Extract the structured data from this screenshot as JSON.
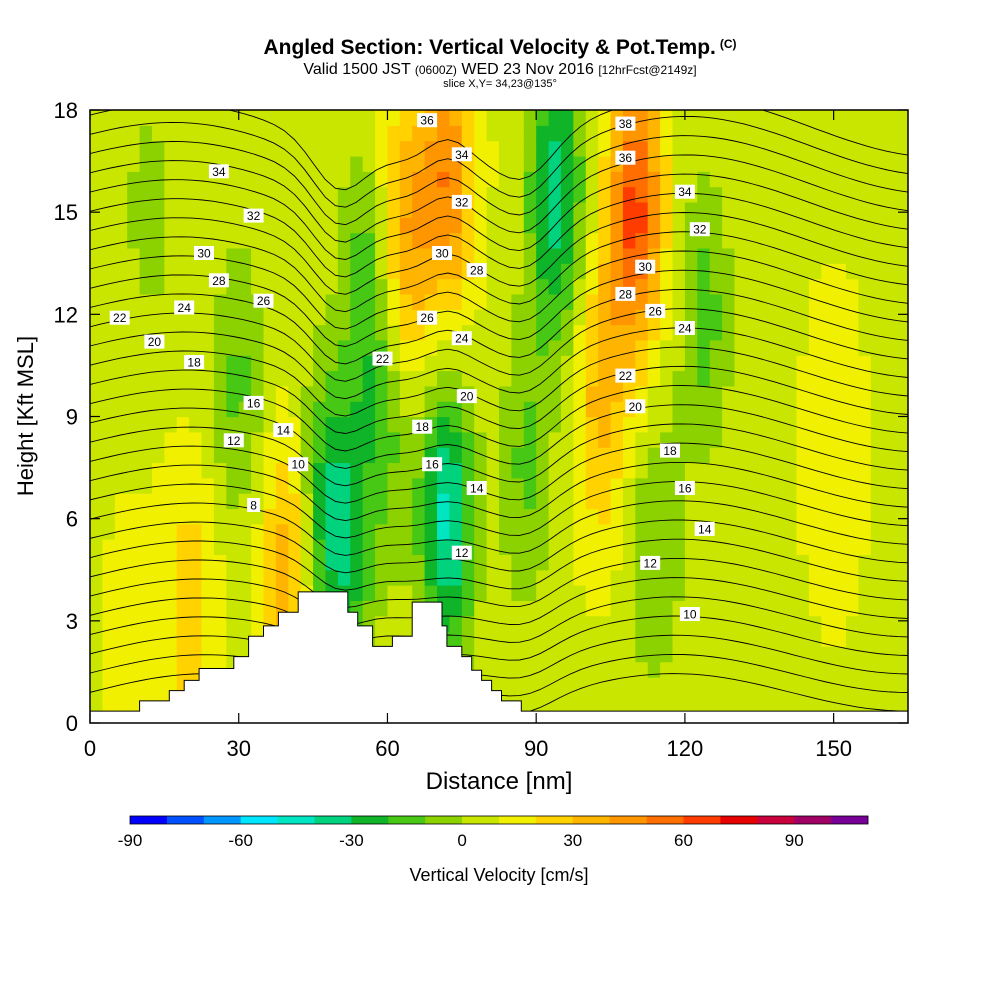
{
  "title": {
    "main": "Angled Section: Vertical Velocity & Pot.Temp.",
    "main_tag": "(C)",
    "valid_prefix": "Valid 1500 JST",
    "valid_utc": "(0600Z)",
    "valid_date": "WED 23 Nov 2016",
    "valid_forecast": "[12hrFcst@2149z]",
    "slice": "slice X,Y= 34,23@135°"
  },
  "chart_data": {
    "type": "heatmap",
    "xlabel": "Distance [nm]",
    "ylabel": "Height [Kft MSL]",
    "xlim": [
      0,
      165
    ],
    "ylim": [
      0,
      18
    ],
    "x_ticks": [
      0,
      30,
      60,
      90,
      120,
      150
    ],
    "y_ticks": [
      0,
      3,
      6,
      9,
      12,
      15,
      18
    ],
    "grid": false,
    "colorbar": {
      "label": "Vertical Velocity [cm/s]",
      "tick_values": [
        -90,
        -60,
        -30,
        0,
        30,
        60,
        90
      ],
      "bounds": [
        -90,
        -80,
        -70,
        -60,
        -50,
        -40,
        -30,
        -20,
        -10,
        0,
        10,
        20,
        30,
        40,
        50,
        60,
        70,
        80,
        90,
        100,
        110
      ],
      "colors": [
        "#0000ff",
        "#0050ff",
        "#0096ff",
        "#00e6ff",
        "#00e6c3",
        "#00d27d",
        "#0fb428",
        "#46c814",
        "#8cd200",
        "#c8e600",
        "#f0f000",
        "#ffd200",
        "#ffb400",
        "#ff9600",
        "#ff6e00",
        "#ff3c00",
        "#e60000",
        "#c8003c",
        "#a00064",
        "#780096"
      ]
    },
    "velocity_field": {
      "units": "cm/s",
      "background_cm_s": 8,
      "features": [
        {
          "x_nm": 8,
          "z_kft": 2.5,
          "w_cm_s": 6
        },
        {
          "x_nm": 12,
          "z_kft": 15,
          "w_cm_s": -12
        },
        {
          "x_nm": 20,
          "z_kft": 3.5,
          "w_cm_s": 18
        },
        {
          "x_nm": 30,
          "z_kft": 10,
          "w_cm_s": -20
        },
        {
          "x_nm": 40,
          "z_kft": 4.5,
          "w_cm_s": 30
        },
        {
          "x_nm": 47,
          "z_kft": 6.5,
          "w_cm_s": -28
        },
        {
          "x_nm": 52,
          "z_kft": 5,
          "w_cm_s": -30
        },
        {
          "x_nm": 56,
          "z_kft": 13,
          "w_cm_s": -25
        },
        {
          "x_nm": 60,
          "z_kft": 9,
          "w_cm_s": -20
        },
        {
          "x_nm": 63,
          "z_kft": 14,
          "w_cm_s": 35
        },
        {
          "x_nm": 72,
          "z_kft": 6,
          "w_cm_s": -50
        },
        {
          "x_nm": 72,
          "z_kft": 16,
          "w_cm_s": 40
        },
        {
          "x_nm": 88,
          "z_kft": 7.5,
          "w_cm_s": -20
        },
        {
          "x_nm": 94,
          "z_kft": 15.5,
          "w_cm_s": -45
        },
        {
          "x_nm": 103,
          "z_kft": 9.5,
          "w_cm_s": 25
        },
        {
          "x_nm": 110,
          "z_kft": 15,
          "w_cm_s": 55
        },
        {
          "x_nm": 114,
          "z_kft": 5,
          "w_cm_s": -18
        },
        {
          "x_nm": 124,
          "z_kft": 12,
          "w_cm_s": -22
        },
        {
          "x_nm": 150,
          "z_kft": 8,
          "w_cm_s": 12
        }
      ]
    },
    "potential_temperature": {
      "units": "C",
      "isotherm_interval": 1,
      "labels": [
        {
          "value": "34",
          "x_nm": 26,
          "z_kft": 16.2
        },
        {
          "value": "32",
          "x_nm": 33,
          "z_kft": 14.9
        },
        {
          "value": "30",
          "x_nm": 23,
          "z_kft": 13.8
        },
        {
          "value": "28",
          "x_nm": 26,
          "z_kft": 13.0
        },
        {
          "value": "26",
          "x_nm": 35,
          "z_kft": 12.4
        },
        {
          "value": "24",
          "x_nm": 19,
          "z_kft": 12.2
        },
        {
          "value": "22",
          "x_nm": 6,
          "z_kft": 11.9
        },
        {
          "value": "20",
          "x_nm": 13,
          "z_kft": 11.2
        },
        {
          "value": "18",
          "x_nm": 21,
          "z_kft": 10.6
        },
        {
          "value": "16",
          "x_nm": 33,
          "z_kft": 9.4
        },
        {
          "value": "14",
          "x_nm": 39,
          "z_kft": 8.6
        },
        {
          "value": "12",
          "x_nm": 29,
          "z_kft": 8.3
        },
        {
          "value": "10",
          "x_nm": 42,
          "z_kft": 7.6
        },
        {
          "value": "8",
          "x_nm": 33,
          "z_kft": 6.4
        },
        {
          "value": "36",
          "x_nm": 68,
          "z_kft": 17.7
        },
        {
          "value": "34",
          "x_nm": 75,
          "z_kft": 16.7
        },
        {
          "value": "32",
          "x_nm": 75,
          "z_kft": 15.3
        },
        {
          "value": "30",
          "x_nm": 71,
          "z_kft": 13.8
        },
        {
          "value": "28",
          "x_nm": 78,
          "z_kft": 13.3
        },
        {
          "value": "26",
          "x_nm": 68,
          "z_kft": 11.9
        },
        {
          "value": "24",
          "x_nm": 75,
          "z_kft": 11.3
        },
        {
          "value": "22",
          "x_nm": 59,
          "z_kft": 10.7
        },
        {
          "value": "20",
          "x_nm": 76,
          "z_kft": 9.6
        },
        {
          "value": "18",
          "x_nm": 67,
          "z_kft": 8.7
        },
        {
          "value": "16",
          "x_nm": 69,
          "z_kft": 7.6
        },
        {
          "value": "14",
          "x_nm": 78,
          "z_kft": 6.9
        },
        {
          "value": "12",
          "x_nm": 75,
          "z_kft": 5.0
        },
        {
          "value": "38",
          "x_nm": 108,
          "z_kft": 17.6
        },
        {
          "value": "36",
          "x_nm": 108,
          "z_kft": 16.6
        },
        {
          "value": "34",
          "x_nm": 120,
          "z_kft": 15.6
        },
        {
          "value": "32",
          "x_nm": 123,
          "z_kft": 14.5
        },
        {
          "value": "30",
          "x_nm": 112,
          "z_kft": 13.4
        },
        {
          "value": "28",
          "x_nm": 108,
          "z_kft": 12.6
        },
        {
          "value": "26",
          "x_nm": 114,
          "z_kft": 12.1
        },
        {
          "value": "24",
          "x_nm": 120,
          "z_kft": 11.6
        },
        {
          "value": "22",
          "x_nm": 108,
          "z_kft": 10.2
        },
        {
          "value": "20",
          "x_nm": 110,
          "z_kft": 9.3
        },
        {
          "value": "18",
          "x_nm": 117,
          "z_kft": 8.0
        },
        {
          "value": "16",
          "x_nm": 120,
          "z_kft": 6.9
        },
        {
          "value": "14",
          "x_nm": 124,
          "z_kft": 5.7
        },
        {
          "value": "12",
          "x_nm": 113,
          "z_kft": 4.7
        },
        {
          "value": "10",
          "x_nm": 121,
          "z_kft": 3.2
        }
      ]
    },
    "terrain_kft": [
      [
        0,
        0.35
      ],
      [
        10,
        0.35
      ],
      [
        10,
        0.65
      ],
      [
        16,
        0.65
      ],
      [
        16,
        0.95
      ],
      [
        19,
        0.95
      ],
      [
        19,
        1.25
      ],
      [
        22,
        1.25
      ],
      [
        22,
        1.6
      ],
      [
        29,
        1.6
      ],
      [
        29,
        1.95
      ],
      [
        32,
        1.95
      ],
      [
        32,
        2.55
      ],
      [
        35,
        2.55
      ],
      [
        35,
        2.85
      ],
      [
        38,
        2.85
      ],
      [
        38,
        3.25
      ],
      [
        42,
        3.25
      ],
      [
        42,
        3.85
      ],
      [
        52,
        3.85
      ],
      [
        52,
        3.25
      ],
      [
        54,
        3.25
      ],
      [
        54,
        2.85
      ],
      [
        57,
        2.85
      ],
      [
        57,
        2.25
      ],
      [
        61,
        2.25
      ],
      [
        61,
        2.55
      ],
      [
        65,
        2.55
      ],
      [
        65,
        3.55
      ],
      [
        71,
        3.55
      ],
      [
        71,
        2.85
      ],
      [
        72,
        2.85
      ],
      [
        72,
        2.25
      ],
      [
        75,
        2.25
      ],
      [
        75,
        1.95
      ],
      [
        77,
        1.95
      ],
      [
        77,
        1.55
      ],
      [
        79,
        1.55
      ],
      [
        79,
        1.25
      ],
      [
        81,
        1.25
      ],
      [
        81,
        0.95
      ],
      [
        83,
        0.95
      ],
      [
        83,
        0.65
      ],
      [
        87,
        0.65
      ],
      [
        87,
        0.35
      ],
      [
        165,
        0.35
      ]
    ]
  }
}
